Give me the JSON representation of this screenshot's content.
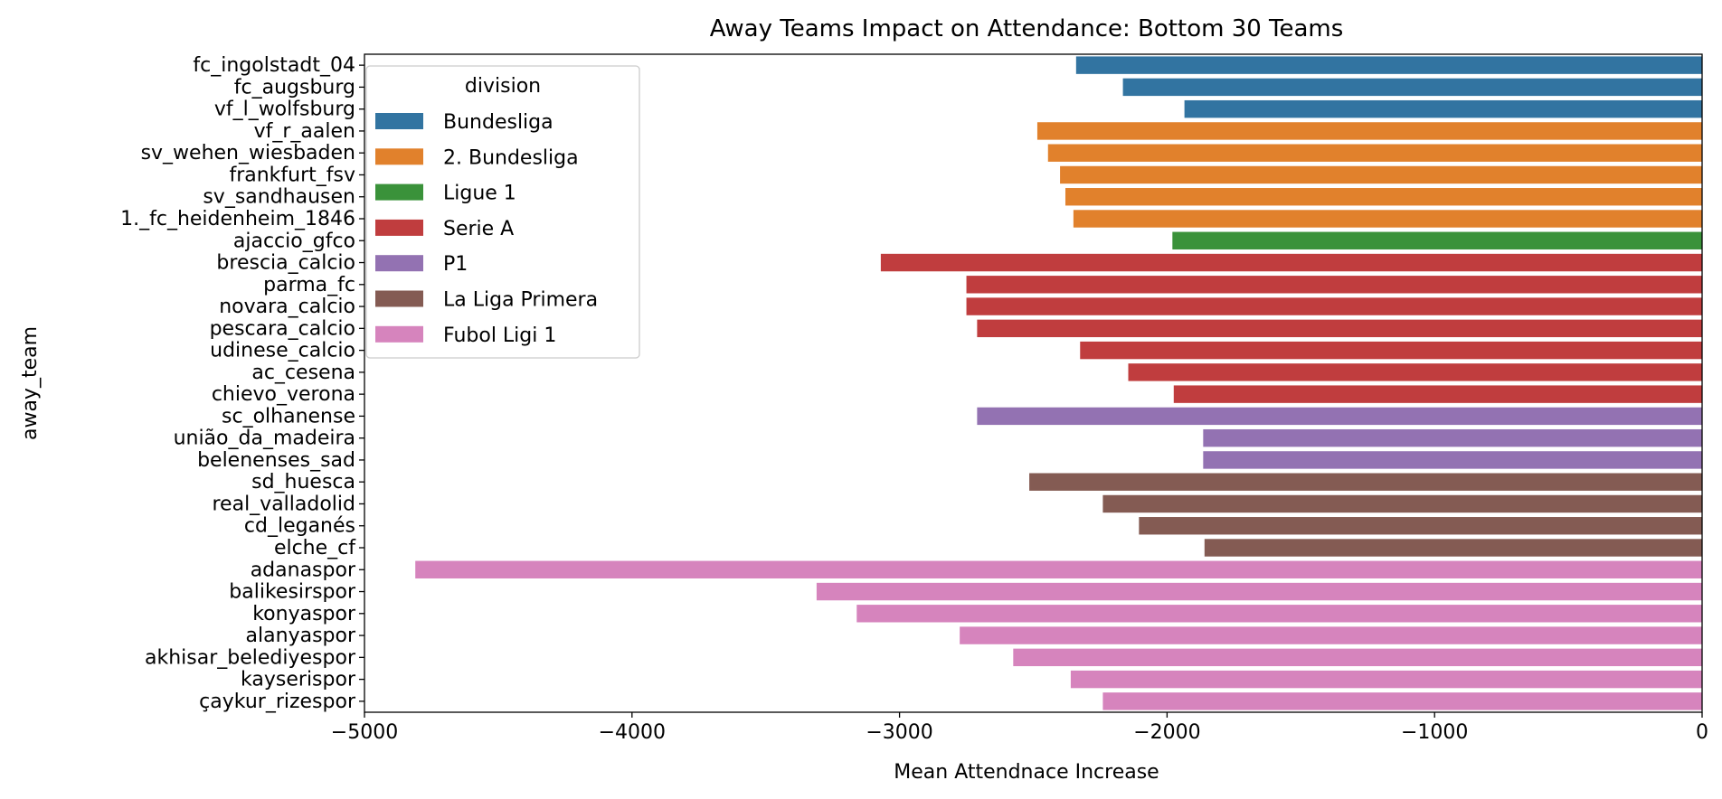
{
  "chart_data": {
    "type": "bar",
    "orientation": "horizontal",
    "title": "Away Teams Impact on Attendance: Bottom 30 Teams",
    "xlabel": "Mean Attendnace Increase",
    "ylabel": "away_team",
    "xlim": [
      -5000,
      0
    ],
    "xticks": [
      -5000,
      -4000,
      -3000,
      -2000,
      -1000,
      0
    ],
    "xtick_labels": [
      "−5000",
      "−4000",
      "−3000",
      "−2000",
      "−1000",
      "0"
    ],
    "grid": false,
    "legend": {
      "title": "division",
      "placement": "top-left",
      "entries": [
        {
          "name": "Bundesliga",
          "color": "#3274a1"
        },
        {
          "name": "2. Bundesliga",
          "color": "#e1812c"
        },
        {
          "name": "Ligue 1",
          "color": "#3a923a"
        },
        {
          "name": "Serie A",
          "color": "#c03d3e"
        },
        {
          "name": "P1",
          "color": "#9372b2"
        },
        {
          "name": "La Liga Primera",
          "color": "#845b53"
        },
        {
          "name": "Fubol Ligi 1",
          "color": "#d684bd"
        }
      ]
    },
    "bars": [
      {
        "team": "fc_ingolstadt_04",
        "division": "Bundesliga",
        "value": -2340
      },
      {
        "team": "fc_augsburg",
        "division": "Bundesliga",
        "value": -2165
      },
      {
        "team": "vf_l_wolfsburg",
        "division": "Bundesliga",
        "value": -1935
      },
      {
        "team": "vf_r_aalen",
        "division": "2. Bundesliga",
        "value": -2485
      },
      {
        "team": "sv_wehen_wiesbaden",
        "division": "2. Bundesliga",
        "value": -2445
      },
      {
        "team": "frankfurt_fsv",
        "division": "2. Bundesliga",
        "value": -2400
      },
      {
        "team": "sv_sandhausen",
        "division": "2. Bundesliga",
        "value": -2380
      },
      {
        "team": "1._fc_heidenheim_1846",
        "division": "2. Bundesliga",
        "value": -2350
      },
      {
        "team": "ajaccio_gfco",
        "division": "Ligue 1",
        "value": -1980
      },
      {
        "team": "brescia_calcio",
        "division": "Serie A",
        "value": -3070
      },
      {
        "team": "parma_fc",
        "division": "Serie A",
        "value": -2750
      },
      {
        "team": "novara_calcio",
        "division": "Serie A",
        "value": -2750
      },
      {
        "team": "pescara_calcio",
        "division": "Serie A",
        "value": -2710
      },
      {
        "team": "udinese_calcio",
        "division": "Serie A",
        "value": -2325
      },
      {
        "team": "ac_cesena",
        "division": "Serie A",
        "value": -2145
      },
      {
        "team": "chievo_verona",
        "division": "Serie A",
        "value": -1975
      },
      {
        "team": "sc_olhanense",
        "division": "P1",
        "value": -2710
      },
      {
        "team": "união_da_madeira",
        "division": "P1",
        "value": -1865
      },
      {
        "team": "belenenses_sad",
        "division": "P1",
        "value": -1865
      },
      {
        "team": "sd_huesca",
        "division": "La Liga Primera",
        "value": -2515
      },
      {
        "team": "real_valladolid",
        "division": "La Liga Primera",
        "value": -2240
      },
      {
        "team": "cd_leganés",
        "division": "La Liga Primera",
        "value": -2105
      },
      {
        "team": "elche_cf",
        "division": "La Liga Primera",
        "value": -1860
      },
      {
        "team": "adanaspor",
        "division": "Fubol Ligi 1",
        "value": -4810
      },
      {
        "team": "balikesirspor",
        "division": "Fubol Ligi 1",
        "value": -3310
      },
      {
        "team": "konyaspor",
        "division": "Fubol Ligi 1",
        "value": -3160
      },
      {
        "team": "alanyaspor",
        "division": "Fubol Ligi 1",
        "value": -2775
      },
      {
        "team": "akhisar_belediyespor",
        "division": "Fubol Ligi 1",
        "value": -2575
      },
      {
        "team": "kayserispor",
        "division": "Fubol Ligi 1",
        "value": -2360
      },
      {
        "team": "çaykur_rizespor",
        "division": "Fubol Ligi 1",
        "value": -2240
      }
    ]
  }
}
